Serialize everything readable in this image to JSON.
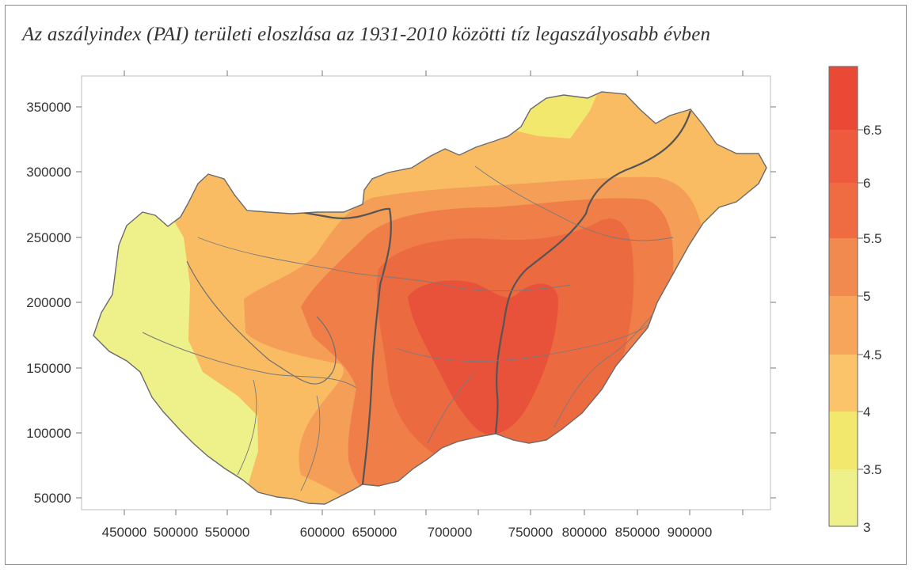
{
  "title": "Az aszályindex (PAI) területi eloszlása az 1931-2010 közötti tíz legaszályosabb évben",
  "map": {
    "x_ticks": [
      "450000",
      "500000",
      "550000",
      "600000",
      "650000",
      "700000",
      "750000",
      "800000",
      "850000",
      "900000"
    ],
    "y_ticks": [
      "350000",
      "300000",
      "250000",
      "200000",
      "150000",
      "100000",
      "50000"
    ],
    "x_range": [
      425000,
      935000
    ],
    "y_range": [
      40000,
      378000
    ]
  },
  "legend": {
    "labels": [
      "6.5",
      "6",
      "5.5",
      "5",
      "4.5",
      "4",
      "3.5",
      "3"
    ],
    "colors": [
      "#ea4a35",
      "#ed5a3d",
      "#ef6c43",
      "#f18a4f",
      "#f6a55a",
      "#fbc36a",
      "#f3e86e",
      "#eef08a"
    ]
  },
  "colors": {
    "level_3_5": "#eef08a",
    "level_4": "#f4e37a",
    "level_4_5": "#f9bc63",
    "level_5": "#f59e57",
    "level_5_5": "#f07e48",
    "level_6": "#ec6a40",
    "level_6_5": "#e8523a"
  }
}
